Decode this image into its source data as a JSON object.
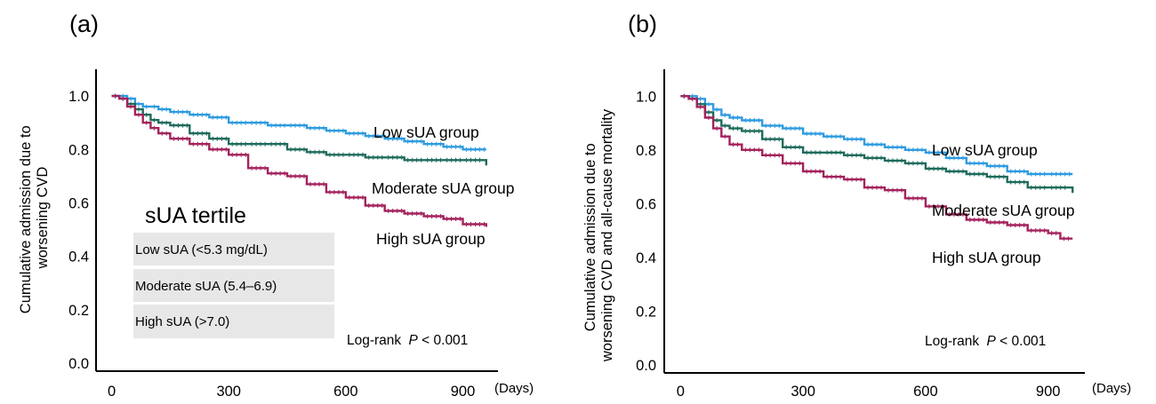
{
  "chart_data": [
    {
      "type": "line",
      "panel_label": "(a)",
      "ylabel_lines": [
        "Cumulative admission due to",
        "worsening CVD"
      ],
      "x_unit": "(Days)",
      "xticks": [
        0,
        300,
        600,
        900
      ],
      "yticks": [
        0.0,
        0.2,
        0.4,
        0.6,
        0.8,
        1.0
      ],
      "ytick_labels": [
        "0.0",
        "0.2",
        "0.4",
        "0.6",
        "0.8",
        "1.0"
      ],
      "xlim": [
        -40,
        990
      ],
      "ylim": [
        -0.03,
        1.1
      ],
      "annotation_prefix": "Log-rank",
      "annotation_p": "P",
      "annotation_suffix": " < 0.001",
      "legend_title": "sUA tertile",
      "legend_rows": [
        "Low sUA (<5.3 mg/dL)",
        "Moderate sUA (5.4–6.9)",
        "High sUA (>7.0)"
      ],
      "series": [
        {
          "name": "Low sUA group",
          "color": "#2e9be0",
          "points": [
            [
              0,
              1.0
            ],
            [
              20,
              1.0
            ],
            [
              40,
              0.99
            ],
            [
              60,
              0.97
            ],
            [
              80,
              0.96
            ],
            [
              100,
              0.96
            ],
            [
              120,
              0.95
            ],
            [
              150,
              0.94
            ],
            [
              200,
              0.93
            ],
            [
              250,
              0.92
            ],
            [
              300,
              0.9
            ],
            [
              350,
              0.9
            ],
            [
              400,
              0.89
            ],
            [
              450,
              0.89
            ],
            [
              500,
              0.88
            ],
            [
              550,
              0.87
            ],
            [
              600,
              0.86
            ],
            [
              650,
              0.85
            ],
            [
              700,
              0.84
            ],
            [
              750,
              0.83
            ],
            [
              800,
              0.82
            ],
            [
              850,
              0.81
            ],
            [
              900,
              0.8
            ],
            [
              960,
              0.8
            ]
          ]
        },
        {
          "name": "Moderate sUA group",
          "color": "#1e6b5c",
          "points": [
            [
              0,
              1.0
            ],
            [
              20,
              0.99
            ],
            [
              40,
              0.97
            ],
            [
              60,
              0.95
            ],
            [
              80,
              0.93
            ],
            [
              100,
              0.91
            ],
            [
              120,
              0.9
            ],
            [
              150,
              0.89
            ],
            [
              200,
              0.86
            ],
            [
              250,
              0.84
            ],
            [
              300,
              0.82
            ],
            [
              350,
              0.82
            ],
            [
              400,
              0.82
            ],
            [
              450,
              0.8
            ],
            [
              500,
              0.79
            ],
            [
              550,
              0.78
            ],
            [
              600,
              0.78
            ],
            [
              650,
              0.77
            ],
            [
              700,
              0.77
            ],
            [
              750,
              0.76
            ],
            [
              800,
              0.76
            ],
            [
              850,
              0.76
            ],
            [
              900,
              0.76
            ],
            [
              950,
              0.76
            ],
            [
              960,
              0.74
            ]
          ]
        },
        {
          "name": "High sUA group",
          "color": "#a3225c",
          "points": [
            [
              0,
              1.0
            ],
            [
              20,
              0.99
            ],
            [
              40,
              0.96
            ],
            [
              60,
              0.93
            ],
            [
              80,
              0.9
            ],
            [
              100,
              0.88
            ],
            [
              120,
              0.86
            ],
            [
              150,
              0.84
            ],
            [
              200,
              0.82
            ],
            [
              250,
              0.8
            ],
            [
              300,
              0.78
            ],
            [
              350,
              0.73
            ],
            [
              400,
              0.71
            ],
            [
              450,
              0.7
            ],
            [
              500,
              0.67
            ],
            [
              550,
              0.64
            ],
            [
              600,
              0.62
            ],
            [
              650,
              0.59
            ],
            [
              700,
              0.57
            ],
            [
              750,
              0.56
            ],
            [
              800,
              0.55
            ],
            [
              850,
              0.54
            ],
            [
              900,
              0.52
            ],
            [
              960,
              0.51
            ]
          ]
        }
      ]
    },
    {
      "type": "line",
      "panel_label": "(b)",
      "ylabel_lines": [
        "Cumulative admission due to",
        "worsening CVD and all-cause mortality"
      ],
      "x_unit": "(Days)",
      "xticks": [
        0,
        300,
        600,
        900
      ],
      "yticks": [
        0.0,
        0.2,
        0.4,
        0.6,
        0.8,
        1.0
      ],
      "ytick_labels": [
        "0.0",
        "0.2",
        "0.4",
        "0.6",
        "0.8",
        "1.0"
      ],
      "xlim": [
        -40,
        990
      ],
      "ylim": [
        -0.03,
        1.1
      ],
      "annotation_prefix": "Log-rank",
      "annotation_p": "P",
      "annotation_suffix": " < 0.001",
      "series": [
        {
          "name": "Low sUA group",
          "color": "#2e9be0",
          "points": [
            [
              0,
              1.0
            ],
            [
              20,
              1.0
            ],
            [
              40,
              0.99
            ],
            [
              60,
              0.97
            ],
            [
              80,
              0.95
            ],
            [
              100,
              0.93
            ],
            [
              120,
              0.92
            ],
            [
              150,
              0.91
            ],
            [
              200,
              0.89
            ],
            [
              250,
              0.88
            ],
            [
              300,
              0.86
            ],
            [
              350,
              0.85
            ],
            [
              400,
              0.84
            ],
            [
              450,
              0.82
            ],
            [
              500,
              0.81
            ],
            [
              550,
              0.8
            ],
            [
              600,
              0.79
            ],
            [
              650,
              0.77
            ],
            [
              700,
              0.75
            ],
            [
              750,
              0.74
            ],
            [
              800,
              0.72
            ],
            [
              850,
              0.71
            ],
            [
              900,
              0.71
            ],
            [
              960,
              0.71
            ]
          ]
        },
        {
          "name": "Moderate sUA group",
          "color": "#1e6b5c",
          "points": [
            [
              0,
              1.0
            ],
            [
              20,
              0.99
            ],
            [
              40,
              0.97
            ],
            [
              60,
              0.94
            ],
            [
              80,
              0.91
            ],
            [
              100,
              0.89
            ],
            [
              120,
              0.88
            ],
            [
              150,
              0.87
            ],
            [
              200,
              0.84
            ],
            [
              250,
              0.81
            ],
            [
              300,
              0.79
            ],
            [
              350,
              0.79
            ],
            [
              400,
              0.78
            ],
            [
              450,
              0.77
            ],
            [
              500,
              0.76
            ],
            [
              550,
              0.75
            ],
            [
              600,
              0.73
            ],
            [
              650,
              0.72
            ],
            [
              700,
              0.71
            ],
            [
              750,
              0.7
            ],
            [
              800,
              0.68
            ],
            [
              850,
              0.66
            ],
            [
              900,
              0.66
            ],
            [
              950,
              0.66
            ],
            [
              960,
              0.64
            ]
          ]
        },
        {
          "name": "High sUA group",
          "color": "#a3225c",
          "points": [
            [
              0,
              1.0
            ],
            [
              20,
              0.99
            ],
            [
              40,
              0.96
            ],
            [
              60,
              0.92
            ],
            [
              80,
              0.88
            ],
            [
              100,
              0.85
            ],
            [
              120,
              0.82
            ],
            [
              150,
              0.8
            ],
            [
              200,
              0.78
            ],
            [
              250,
              0.75
            ],
            [
              300,
              0.72
            ],
            [
              350,
              0.7
            ],
            [
              400,
              0.69
            ],
            [
              450,
              0.66
            ],
            [
              500,
              0.65
            ],
            [
              550,
              0.62
            ],
            [
              600,
              0.59
            ],
            [
              650,
              0.56
            ],
            [
              700,
              0.54
            ],
            [
              750,
              0.53
            ],
            [
              800,
              0.52
            ],
            [
              850,
              0.5
            ],
            [
              900,
              0.49
            ],
            [
              930,
              0.47
            ],
            [
              960,
              0.47
            ]
          ]
        }
      ]
    }
  ]
}
